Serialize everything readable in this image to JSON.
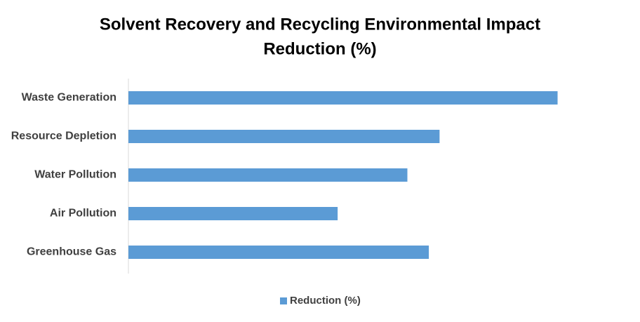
{
  "chart_data": {
    "type": "hbar",
    "title": [
      "Solvent Recovery and Recycling Environmental Impact",
      "Reduction (%)"
    ],
    "categories": [
      "Waste Generation",
      "Resource Depletion",
      "Water Pollution",
      "Air Pollution",
      "Greenhouse Gas"
    ],
    "series": [
      {
        "name": "Reduction (%)",
        "color": "#5b9bd5",
        "values": [
          80,
          58,
          52,
          39,
          56
        ]
      }
    ],
    "xlim": [
      0,
      90
    ],
    "grid": false,
    "legend": "bottom"
  }
}
